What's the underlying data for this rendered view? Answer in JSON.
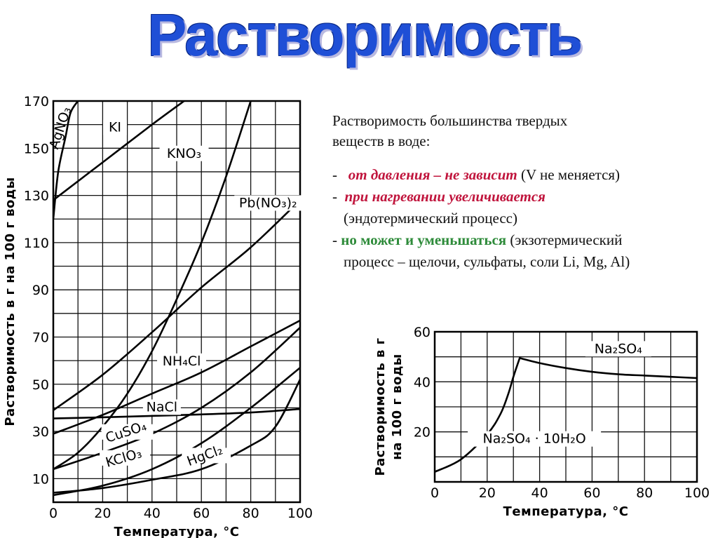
{
  "title": "Растворимость",
  "text": {
    "intro_line1": "Растворимость большинства твердых",
    "intro_line2": "веществ в воде:",
    "item1_dash": "- ",
    "item1_colored": "от давления – не зависит",
    "item1_rest": " (V не меняется)",
    "item2_dash": "- ",
    "item2_colored": "при нагревании увеличивается",
    "item2_rest": "(эндотермический процесс)",
    "item3_dash": "- ",
    "item3_colored": "но может и уменьшаться",
    "item3_rest": " (экзотермический",
    "item3_rest2": "процесс – щелочи, сульфаты, соли Li, Mg, Al)"
  },
  "colors": {
    "title": "#1f4fd6",
    "red_text": "#c0143c",
    "green_text": "#2e8b3a"
  },
  "chart_data": [
    {
      "type": "line",
      "xlabel": "Температура, °C",
      "ylabel": "Растворимость в г на 100 г воды",
      "xlim": [
        0,
        100
      ],
      "ylim": [
        0,
        170
      ],
      "xticks": [
        0,
        20,
        40,
        60,
        80,
        100
      ],
      "yticks": [
        10,
        30,
        50,
        70,
        90,
        110,
        130,
        150,
        170
      ],
      "grid": true,
      "series": [
        {
          "name": "AgNO₃",
          "x": [
            0,
            2,
            5,
            7,
            10
          ],
          "y": [
            120,
            140,
            155,
            165,
            170
          ]
        },
        {
          "name": "KI",
          "x": [
            0,
            20,
            40,
            53
          ],
          "y": [
            128,
            144,
            160,
            170
          ]
        },
        {
          "name": "KNO₃",
          "x": [
            0,
            10,
            20,
            30,
            40,
            50,
            60,
            70,
            80
          ],
          "y": [
            14,
            21,
            32,
            46,
            64,
            86,
            110,
            138,
            170
          ]
        },
        {
          "name": "Pb(NO₃)₂",
          "x": [
            0,
            20,
            40,
            60,
            80,
            100
          ],
          "y": [
            39,
            54,
            72,
            91,
            108,
            128
          ]
        },
        {
          "name": "NH₄Cl",
          "x": [
            0,
            20,
            40,
            60,
            80,
            100
          ],
          "y": [
            29,
            37,
            46,
            55,
            66,
            77
          ]
        },
        {
          "name": "NaCl",
          "x": [
            0,
            20,
            40,
            60,
            80,
            100
          ],
          "y": [
            35.5,
            36,
            36.6,
            37.2,
            38,
            39.5
          ]
        },
        {
          "name": "CuSO₄",
          "x": [
            0,
            20,
            40,
            60,
            80,
            100
          ],
          "y": [
            14,
            21,
            29,
            40,
            55,
            74
          ]
        },
        {
          "name": "KClO₃",
          "x": [
            0,
            20,
            40,
            60,
            80,
            100
          ],
          "y": [
            3,
            7,
            14,
            25,
            40,
            57
          ]
        },
        {
          "name": "HgCl₂",
          "x": [
            0,
            20,
            40,
            60,
            80,
            90,
            100
          ],
          "y": [
            4,
            6,
            9.5,
            14,
            24,
            32,
            52
          ]
        }
      ]
    },
    {
      "type": "line",
      "xlabel": "Температура, °C",
      "ylabel": "Растворимость в г на 100 г воды",
      "xlim": [
        0,
        100
      ],
      "ylim": [
        0,
        60
      ],
      "xticks": [
        0,
        20,
        40,
        60,
        80,
        100
      ],
      "yticks": [
        20,
        40,
        60
      ],
      "grid": true,
      "series": [
        {
          "name": "Na₂SO₄ · 10H₂O",
          "x": [
            0,
            10,
            20,
            25,
            28,
            30,
            32.4
          ],
          "y": [
            4,
            9,
            19,
            27,
            35,
            42,
            49.5
          ]
        },
        {
          "name": "Na₂SO₄",
          "x": [
            32.4,
            40,
            50,
            60,
            70,
            80,
            90,
            100
          ],
          "y": [
            49.5,
            47.5,
            45.5,
            44,
            43,
            42.5,
            42,
            41.5
          ]
        }
      ]
    }
  ]
}
